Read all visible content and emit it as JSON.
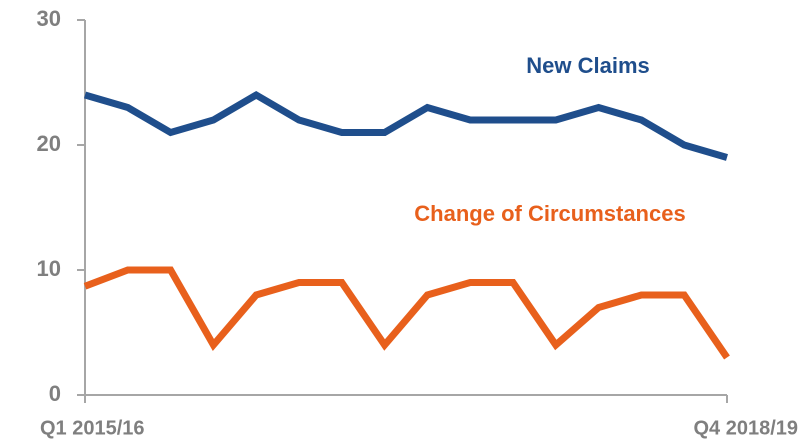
{
  "chart_data": {
    "type": "line",
    "categories": [
      "Q1 2015/16",
      null,
      null,
      null,
      null,
      null,
      null,
      null,
      null,
      null,
      null,
      null,
      null,
      null,
      null,
      "Q4 2018/19"
    ],
    "series": [
      {
        "name": "New Claims",
        "color": "#1f4e8c",
        "values": [
          24,
          23,
          21,
          22,
          24,
          22,
          21,
          21,
          23,
          22,
          22,
          22,
          23,
          22,
          20,
          19
        ]
      },
      {
        "name": "Change of Circumstances",
        "color": "#e8601c",
        "values": [
          8.7,
          10,
          10,
          4,
          8,
          9,
          9,
          4,
          8,
          9,
          9,
          4,
          7,
          8,
          8,
          3
        ]
      }
    ],
    "ylim": [
      0,
      30
    ],
    "yticks": [
      0,
      10,
      20,
      30
    ],
    "grid": false
  }
}
